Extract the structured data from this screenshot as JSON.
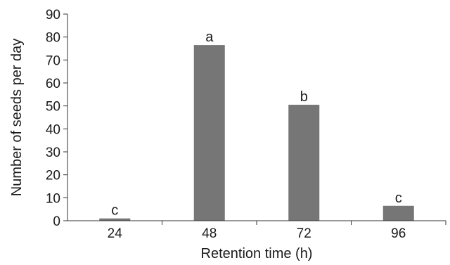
{
  "chart_data": {
    "type": "bar",
    "categories": [
      "24",
      "48",
      "72",
      "96"
    ],
    "values": [
      1,
      76.5,
      50.5,
      6.5
    ],
    "significance_letters": [
      "c",
      "a",
      "b",
      "c"
    ],
    "xlabel": "Retention time (h)",
    "ylabel": "Number of seeds per day",
    "ylim": [
      0,
      90
    ],
    "yticks": [
      0,
      10,
      20,
      30,
      40,
      50,
      60,
      70,
      80,
      90
    ],
    "grid": false,
    "legend": "none",
    "bar_color": "#767676"
  }
}
